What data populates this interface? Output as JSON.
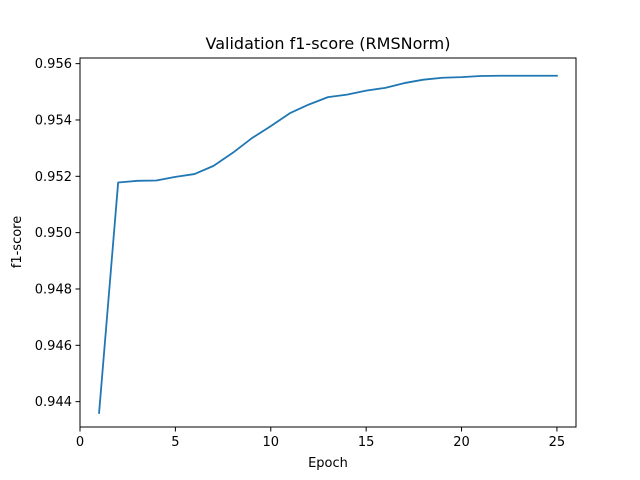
{
  "chart_data": {
    "type": "line",
    "title": "Validation f1-score (RMSNorm)",
    "xlabel": "Epoch",
    "ylabel": "f1-score",
    "xlim": [
      0,
      26
    ],
    "ylim": [
      0.9431,
      0.9562
    ],
    "xticks": [
      0,
      5,
      10,
      15,
      20,
      25
    ],
    "yticks": [
      0.944,
      0.946,
      0.948,
      0.95,
      0.952,
      0.954,
      0.956
    ],
    "ytick_labels": [
      "0.944",
      "0.946",
      "0.948",
      "0.950",
      "0.952",
      "0.954",
      "0.956"
    ],
    "grid": false,
    "series": [
      {
        "color": "#1f77b4",
        "x": [
          1,
          2,
          3,
          4,
          5,
          6,
          7,
          8,
          9,
          10,
          11,
          12,
          13,
          14,
          15,
          16,
          17,
          18,
          19,
          20,
          21,
          22,
          23,
          24,
          25
        ],
        "y": [
          0.9436,
          0.95178,
          0.95184,
          0.95185,
          0.95198,
          0.95208,
          0.95237,
          0.95283,
          0.95335,
          0.95378,
          0.95424,
          0.95455,
          0.95481,
          0.9549,
          0.95504,
          0.95514,
          0.95531,
          0.95543,
          0.9555,
          0.95552,
          0.95556,
          0.95557,
          0.95557,
          0.95557,
          0.95557
        ]
      }
    ]
  }
}
